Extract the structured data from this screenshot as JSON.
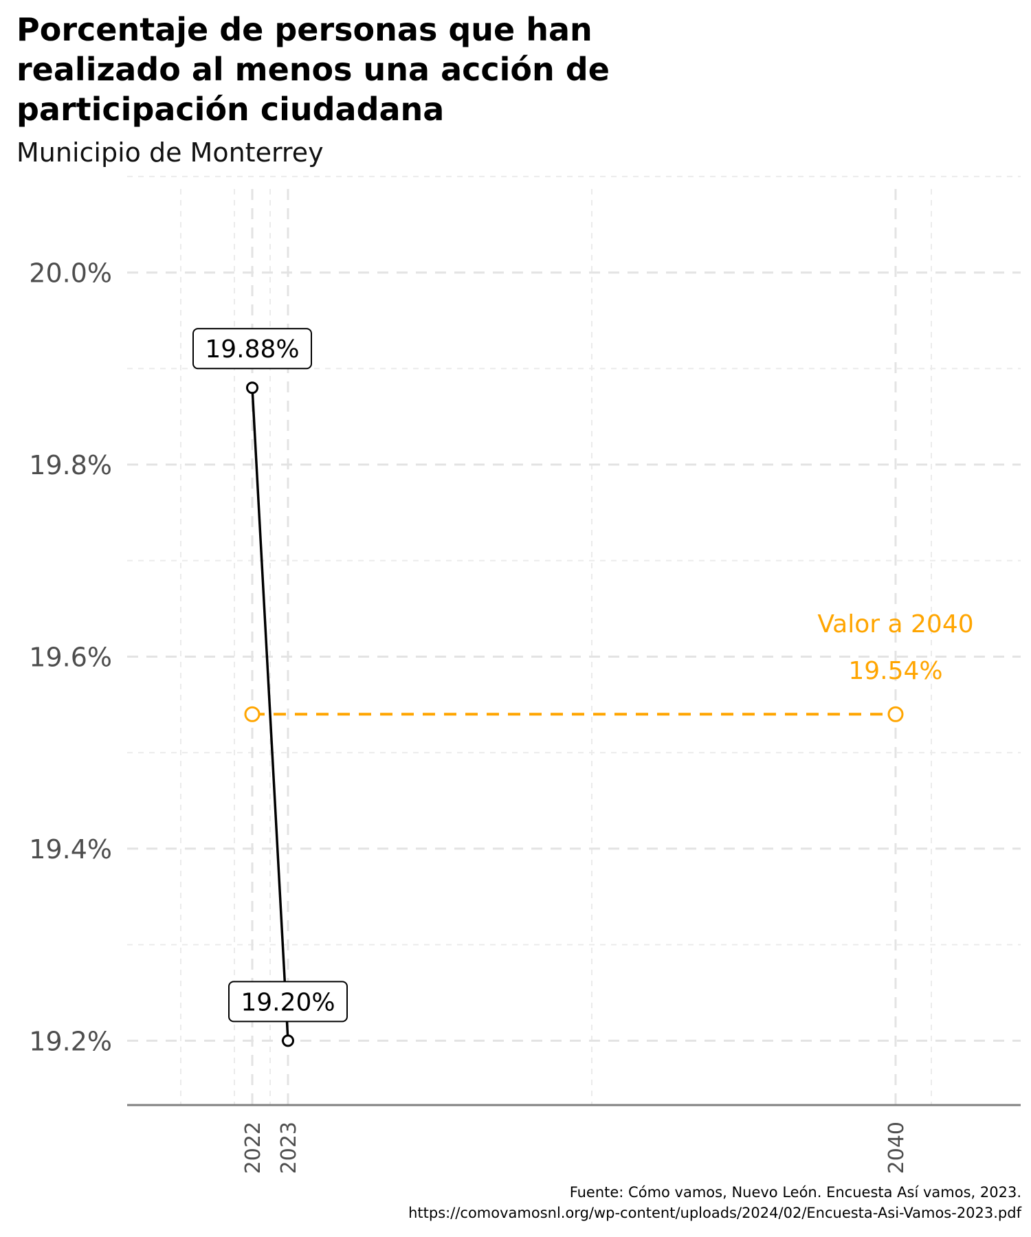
{
  "chart_data": {
    "type": "line",
    "title": "Porcentaje de personas que han realizado al menos una acción de participación ciudadana",
    "subtitle": "Municipio de Monterrey",
    "xlabel": "",
    "ylabel": "",
    "x": [
      2022,
      2023
    ],
    "x_ticks": [
      "2022",
      "2023",
      "2040"
    ],
    "y_ticks": [
      "19.2%",
      "19.4%",
      "19.6%",
      "19.8%",
      "20.0%"
    ],
    "ylim": [
      19.133,
      20.087
    ],
    "xlim": [
      2018.5,
      2043.5
    ],
    "grid": true,
    "series": [
      {
        "values": [
          19.88,
          19.2
        ],
        "labels": [
          "19.88%",
          "19.20%"
        ],
        "color": "#000000"
      }
    ],
    "target": {
      "x_start": 2022,
      "x_end": 2040,
      "value": 19.54,
      "label_line1": "Valor a 2040",
      "label_line2": "19.54%",
      "color": "#FFA500"
    },
    "caption_line1": "Fuente: Cómo vamos, Nuevo León. Encuesta Así vamos, 2023.",
    "caption_line2": "https://comovamosnl.org/wp-content/uploads/2024/02/Encuesta-Asi-Vamos-2023.pdf"
  }
}
